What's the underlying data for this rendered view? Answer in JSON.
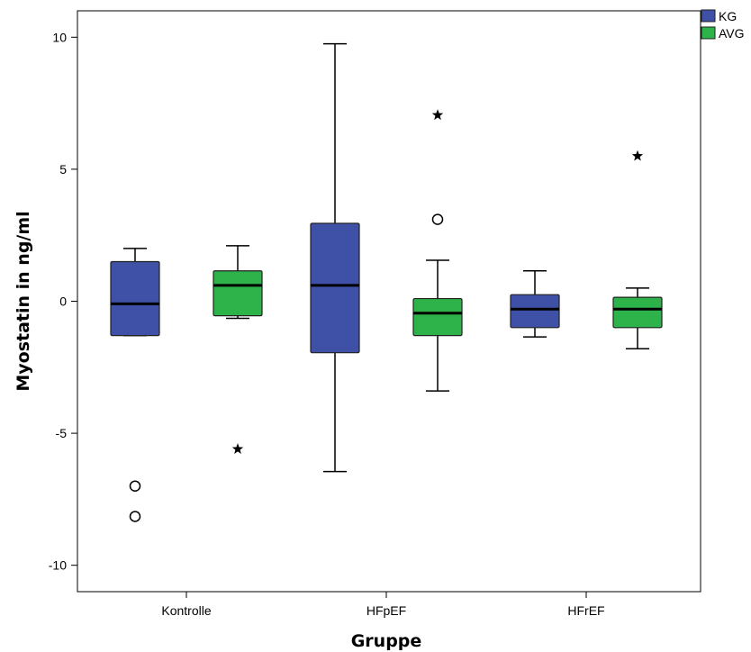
{
  "chart_data": {
    "type": "boxplot",
    "xlabel": "Gruppe",
    "ylabel": "Myostatin in ng/ml",
    "ylim": [
      -11,
      11
    ],
    "yticks": [
      -10,
      -5,
      0,
      5,
      10
    ],
    "categories": [
      "Kontrolle",
      "HFpEF",
      "HFrEF"
    ],
    "legend": {
      "position": "top-right"
    },
    "series": [
      {
        "name": "KG",
        "color": "#3F51A6",
        "boxes": [
          {
            "category": "Kontrolle",
            "whisker_low": -1.3,
            "q1": -1.3,
            "median": -0.1,
            "q3": 1.5,
            "whisker_high": 2.0,
            "outliers": [
              {
                "value": -7.0,
                "symbol": "circle"
              },
              {
                "value": -8.15,
                "symbol": "circle"
              }
            ]
          },
          {
            "category": "HFpEF",
            "whisker_low": -6.45,
            "q1": -1.95,
            "median": 0.6,
            "q3": 2.95,
            "whisker_high": 9.75,
            "outliers": []
          },
          {
            "category": "HFrEF",
            "whisker_low": -1.35,
            "q1": -1.0,
            "median": -0.3,
            "q3": 0.25,
            "whisker_high": 1.15,
            "outliers": []
          }
        ]
      },
      {
        "name": "AVG",
        "color": "#2DB34A",
        "boxes": [
          {
            "category": "Kontrolle",
            "whisker_low": -0.65,
            "q1": -0.55,
            "median": 0.6,
            "q3": 1.15,
            "whisker_high": 2.1,
            "outliers": [
              {
                "value": -5.6,
                "symbol": "star"
              }
            ]
          },
          {
            "category": "HFpEF",
            "whisker_low": -3.4,
            "q1": -1.3,
            "median": -0.45,
            "q3": 0.1,
            "whisker_high": 1.55,
            "outliers": [
              {
                "value": 7.05,
                "symbol": "star"
              },
              {
                "value": 3.1,
                "symbol": "circle"
              }
            ]
          },
          {
            "category": "HFrEF",
            "whisker_low": -1.8,
            "q1": -1.0,
            "median": -0.3,
            "q3": 0.15,
            "whisker_high": 0.5,
            "outliers": [
              {
                "value": 5.5,
                "symbol": "star"
              }
            ]
          }
        ]
      }
    ]
  }
}
